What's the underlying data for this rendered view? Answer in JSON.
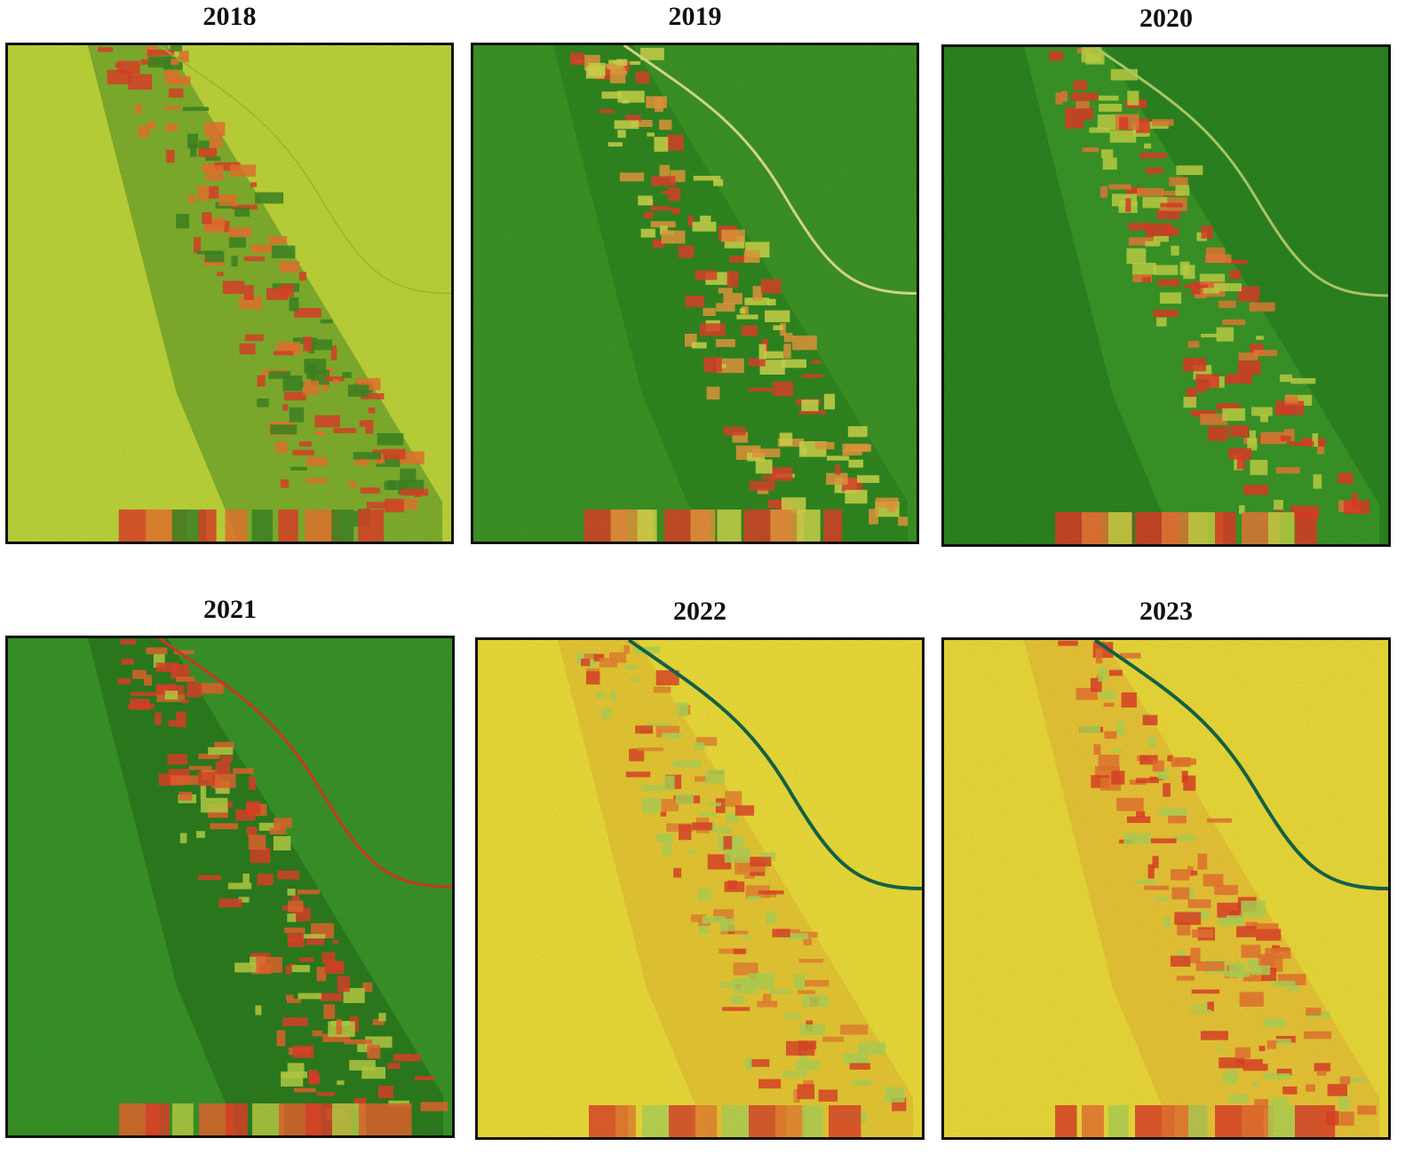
{
  "panels": [
    {
      "title": "2018"
    },
    {
      "title": "2019"
    },
    {
      "title": "2020"
    },
    {
      "title": "2021"
    },
    {
      "title": "2022"
    },
    {
      "title": "2023"
    }
  ]
}
